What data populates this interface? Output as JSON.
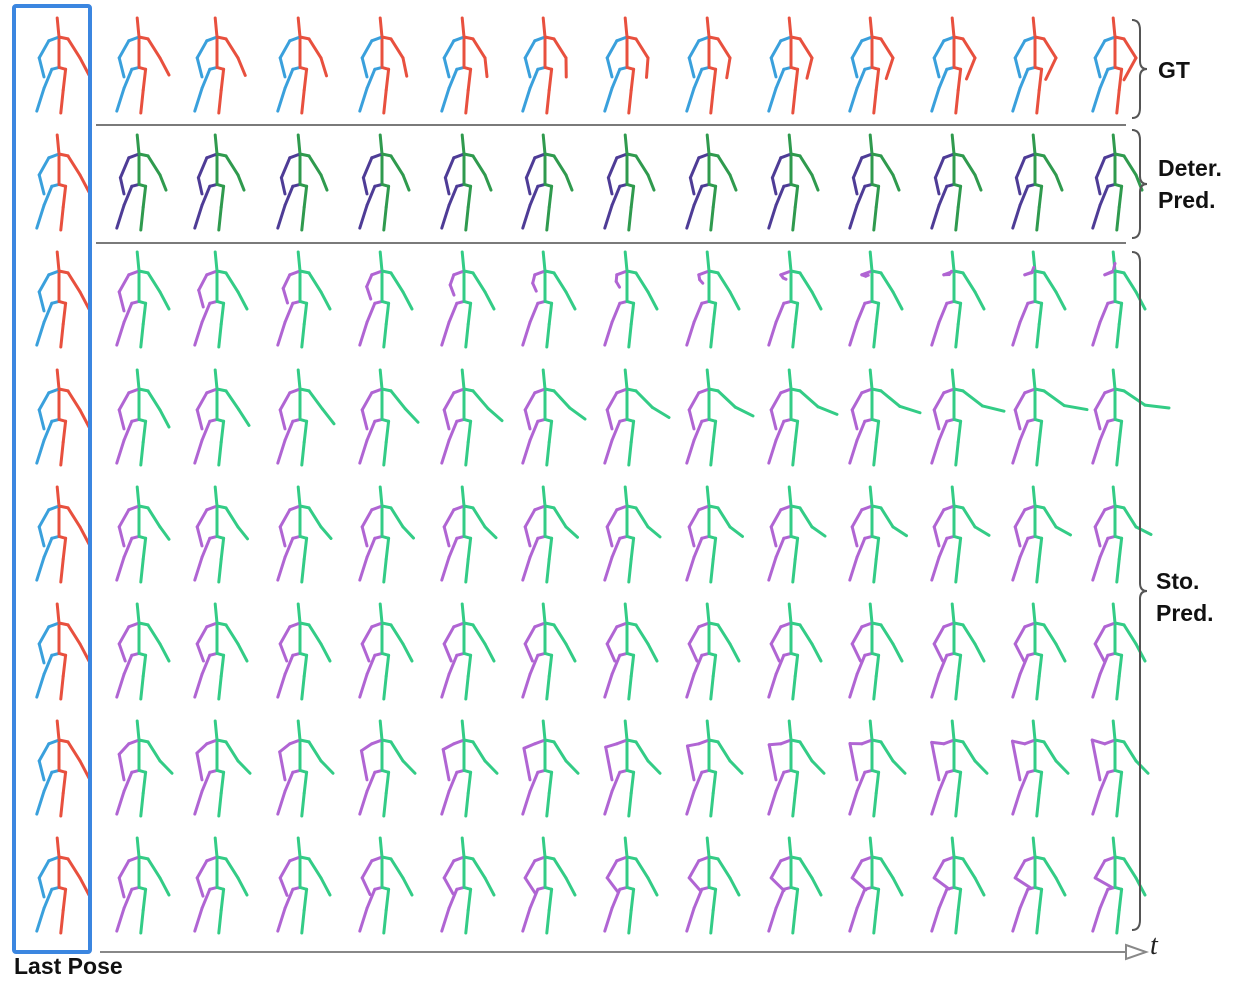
{
  "labels": {
    "gt": "GT",
    "deter_line1": "Deter.",
    "deter_line2": "Pred.",
    "sto_line1": "Sto.",
    "sto_line2": "Pred.",
    "last_pose": "Last Pose",
    "time_axis": "t"
  },
  "colors": {
    "gt_left": "#3aa0dc",
    "gt_right": "#e8503e",
    "deter_left": "#4e3c96",
    "deter_right": "#2f9a4e",
    "sto_left": "#b065d3",
    "sto_right": "#33cc86",
    "last_pose_box": "#3b86e0",
    "separator": "#7a7a7a"
  },
  "rows": [
    {
      "group": "gt"
    },
    {
      "group": "deter"
    },
    {
      "group": "sto"
    },
    {
      "group": "sto"
    },
    {
      "group": "sto"
    },
    {
      "group": "sto"
    },
    {
      "group": "sto"
    },
    {
      "group": "sto"
    }
  ],
  "time_steps": 13
}
